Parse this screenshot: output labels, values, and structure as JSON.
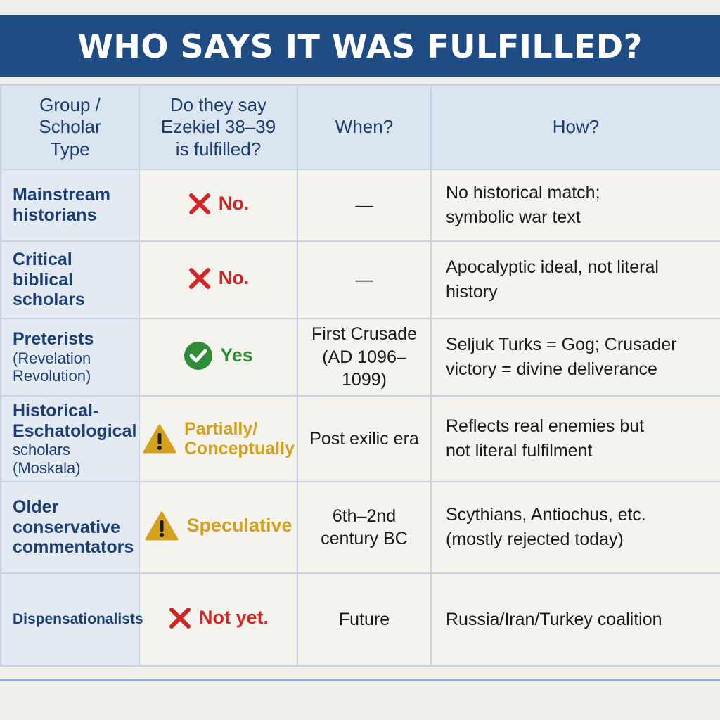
{
  "title": "WHO SAYS IT WAS FULFILLED?",
  "headers": {
    "group": "Group / Scholar Type",
    "fulfilled": "Do they say Ezekiel 38–39 is fulfilled?",
    "when": "When?",
    "how": "How?"
  },
  "rows": [
    {
      "group": "Mainstream historians",
      "group_sub": "",
      "verdict": "No.",
      "verdict_icon": "x-icon",
      "when": "—",
      "how": "No historical match; symbolic war text"
    },
    {
      "group": "Critical biblical scholars",
      "group_sub": "",
      "verdict": "No.",
      "verdict_icon": "x-icon",
      "when": "—",
      "how": "Apocalyptic ideal, not literal history"
    },
    {
      "group": "Preterists",
      "group_sub": "(Revelation Revolution)",
      "verdict": "Yes",
      "verdict_icon": "check-icon",
      "when": "First Crusade (AD 1096–1099)",
      "how": "Seljuk Turks = Gog; Crusader victory = divine deliverance"
    },
    {
      "group": "Historical-Eschatological",
      "group_sub": "scholars (Moskala)",
      "verdict": "Partially/ Conceptually",
      "verdict_icon": "warning-icon",
      "when": "Post exilic era",
      "how": "Reflects real enemies but not literal fulfilment"
    },
    {
      "group": "Older conservative commentators",
      "group_sub": "",
      "verdict": "Speculative",
      "verdict_icon": "warning-icon",
      "when": "6th–2nd century BC",
      "how": "Scythians, Antiochus, etc. (mostly rejected today)"
    },
    {
      "group": "Dispensationalists",
      "group_sub": "",
      "verdict": "Not yet.",
      "verdict_icon": "x-icon",
      "when": "Future",
      "how": "Russia/Iran/Turkey coalition"
    }
  ],
  "colors": {
    "title_bar": "#1f4c82",
    "no": "#d02626",
    "yes": "#2f8d3a",
    "warn": "#d5a01d"
  }
}
